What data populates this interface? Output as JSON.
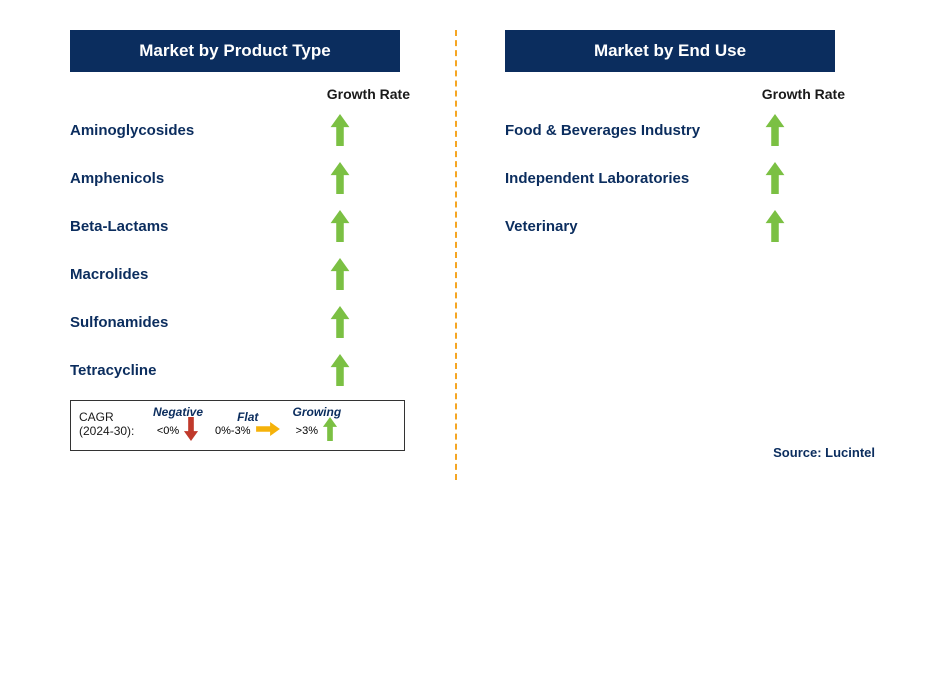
{
  "colors": {
    "header_bg": "#0b2d5e",
    "header_text": "#ffffff",
    "label_text": "#0b2d5e",
    "divider": "#f5a623",
    "growing_arrow": "#7bc043",
    "flat_arrow": "#f5b20a",
    "negative_arrow": "#c0392b",
    "legend_cat": "#0b2d5e",
    "source_text": "#0b2d5e"
  },
  "left_panel": {
    "title": "Market by Product Type",
    "growth_label": "Growth Rate",
    "items": [
      {
        "label": "Aminoglycosides",
        "trend": "growing"
      },
      {
        "label": "Amphenicols",
        "trend": "growing"
      },
      {
        "label": "Beta-Lactams",
        "trend": "growing"
      },
      {
        "label": "Macrolides",
        "trend": "growing"
      },
      {
        "label": "Sulfonamides",
        "trend": "growing"
      },
      {
        "label": "Tetracycline",
        "trend": "growing"
      }
    ]
  },
  "right_panel": {
    "title": "Market by End Use",
    "growth_label": "Growth Rate",
    "items": [
      {
        "label": "Food & Beverages Industry",
        "trend": "growing"
      },
      {
        "label": "Independent Laboratories",
        "trend": "growing"
      },
      {
        "label": "Veterinary",
        "trend": "growing"
      }
    ]
  },
  "legend": {
    "line1": "CAGR",
    "line2": "(2024-30):",
    "categories": [
      {
        "name": "Negative",
        "range": "<0%",
        "trend": "negative"
      },
      {
        "name": "Flat",
        "range": "0%-3%",
        "trend": "flat"
      },
      {
        "name": "Growing",
        "range": ">3%",
        "trend": "growing"
      }
    ]
  },
  "source": "Source: Lucintel"
}
